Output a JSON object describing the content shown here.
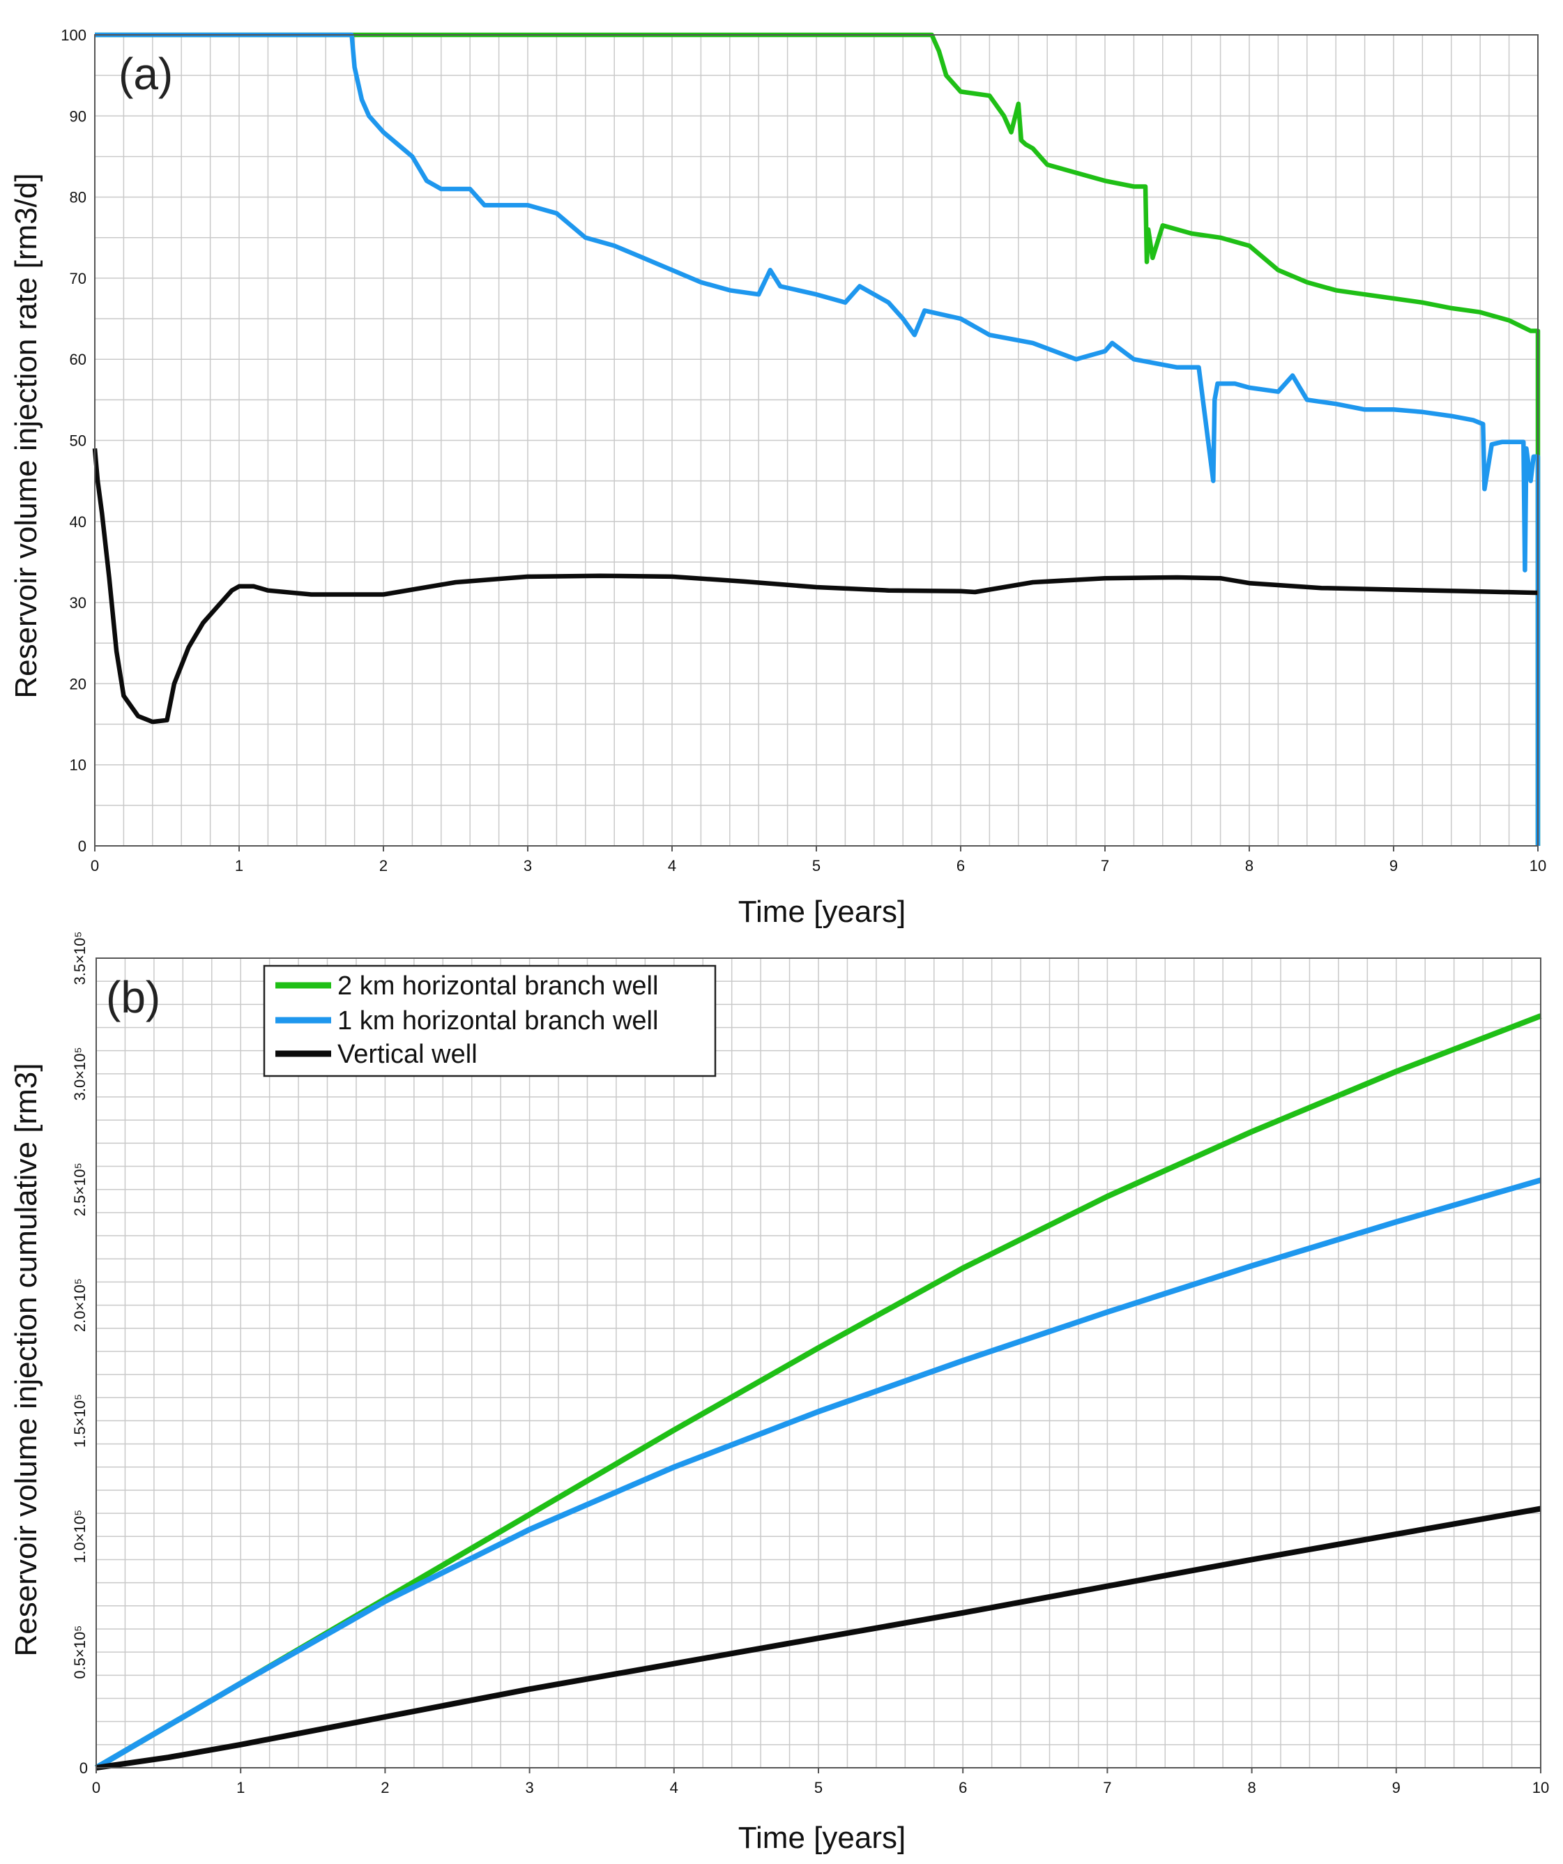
{
  "colors": {
    "green": "#1fbf16",
    "blue": "#1e97ee",
    "black": "#0b0b0b",
    "grid": "#c9c9c9"
  },
  "chart_data": [
    {
      "type": "line",
      "panel_label": "(a)",
      "xlabel": "Time [years]",
      "ylabel": "Reservoir volume injection rate [rm3/d]",
      "xlim": [
        0,
        10
      ],
      "ylim": [
        0,
        100
      ],
      "x_ticks": [
        "0",
        "1",
        "2",
        "3",
        "4",
        "5",
        "6",
        "7",
        "8",
        "9",
        "10"
      ],
      "y_ticks": [
        "0",
        "10",
        "20",
        "30",
        "40",
        "50",
        "60",
        "70",
        "80",
        "90",
        "100"
      ],
      "grid": true,
      "series": [
        {
          "key": "green",
          "x": [
            0,
            5.8,
            5.85,
            5.9,
            6.0,
            6.2,
            6.3,
            6.35,
            6.4,
            6.42,
            6.45,
            6.5,
            6.6,
            6.8,
            7.0,
            7.2,
            7.28,
            7.29,
            7.3,
            7.33,
            7.4,
            7.6,
            7.8,
            8.0,
            8.2,
            8.4,
            8.6,
            8.8,
            9.0,
            9.2,
            9.4,
            9.6,
            9.8,
            9.95,
            10.0,
            10.0
          ],
          "y": [
            100,
            100,
            98,
            95,
            93,
            92.5,
            90,
            88,
            91.5,
            87,
            86.5,
            86,
            84,
            83,
            82,
            81.3,
            81.3,
            72,
            76,
            72.5,
            76.5,
            75.5,
            75,
            74,
            71,
            69.5,
            68.5,
            68,
            67.5,
            67,
            66.3,
            65.8,
            64.8,
            63.5,
            63.5,
            0
          ]
        },
        {
          "key": "blue",
          "x": [
            0,
            1.78,
            1.8,
            1.85,
            1.9,
            2.0,
            2.2,
            2.3,
            2.4,
            2.6,
            2.7,
            2.8,
            2.9,
            3.0,
            3.2,
            3.4,
            3.6,
            3.8,
            4.0,
            4.2,
            4.4,
            4.6,
            4.68,
            4.75,
            5.0,
            5.2,
            5.3,
            5.5,
            5.6,
            5.68,
            5.75,
            6.0,
            6.2,
            6.5,
            6.8,
            7.0,
            7.05,
            7.2,
            7.5,
            7.65,
            7.75,
            7.76,
            7.78,
            7.9,
            8.0,
            8.2,
            8.3,
            8.4,
            8.6,
            8.8,
            9.0,
            9.2,
            9.4,
            9.55,
            9.62,
            9.63,
            9.68,
            9.75,
            9.9,
            9.91,
            9.92,
            9.95,
            9.97,
            10.0,
            10.0
          ],
          "y": [
            100,
            100,
            96,
            92,
            90,
            88,
            85,
            82,
            81,
            81,
            79,
            79,
            79,
            79,
            78,
            75,
            74,
            72.5,
            71,
            69.5,
            68.5,
            68,
            71,
            69,
            68,
            67,
            69,
            67,
            65,
            63,
            66,
            65,
            63,
            62,
            60,
            61,
            62,
            60,
            59,
            59,
            45,
            55,
            57,
            57,
            56.5,
            56,
            58,
            55,
            54.5,
            53.8,
            53.8,
            53.5,
            53,
            52.5,
            52,
            44,
            49.5,
            49.8,
            49.8,
            34,
            49,
            45,
            48,
            48,
            0
          ]
        },
        {
          "key": "black",
          "x": [
            0,
            0.02,
            0.05,
            0.1,
            0.15,
            0.2,
            0.3,
            0.4,
            0.5,
            0.55,
            0.65,
            0.75,
            0.85,
            0.95,
            1.0,
            1.1,
            1.2,
            1.5,
            2.0,
            2.5,
            3.0,
            3.5,
            4.0,
            4.5,
            5.0,
            5.5,
            6.0,
            6.1,
            6.5,
            7.0,
            7.5,
            7.8,
            8.0,
            8.5,
            9.0,
            9.5,
            10.0
          ],
          "y": [
            49,
            45,
            41,
            33,
            24,
            18.5,
            16,
            15.3,
            15.5,
            20,
            24.5,
            27.5,
            29.5,
            31.5,
            32,
            32,
            31.5,
            31,
            31,
            32.5,
            33.2,
            33.3,
            33.2,
            32.6,
            31.9,
            31.5,
            31.4,
            31.3,
            32.5,
            33,
            33.1,
            33,
            32.4,
            31.8,
            31.6,
            31.4,
            31.2
          ]
        }
      ]
    },
    {
      "type": "line",
      "panel_label": "(b)",
      "xlabel": "Time [years]",
      "ylabel": "Reservoir volume injection cumulative [rm3]",
      "xlim": [
        0,
        10
      ],
      "ylim": [
        0,
        350000
      ],
      "x_ticks": [
        "0",
        "1",
        "2",
        "3",
        "4",
        "5",
        "6",
        "7",
        "8",
        "9",
        "10"
      ],
      "y_ticks": [
        "0",
        "0.5×10⁵",
        "1.0×10⁵",
        "1.5×10⁵",
        "2.0×10⁵",
        "2.5×10⁵",
        "3.0×10⁵",
        "3.5×10⁵"
      ],
      "grid": true,
      "legend_position": "top-left",
      "series": [
        {
          "key": "green",
          "name": "2 km horizontal branch well",
          "x": [
            0,
            1,
            2,
            3,
            4,
            5,
            6,
            7,
            8,
            9,
            10
          ],
          "y": [
            0,
            36500,
            73000,
            109500,
            146000,
            181500,
            216000,
            247000,
            275000,
            301000,
            325000
          ]
        },
        {
          "key": "blue",
          "name": "1 km horizontal branch well",
          "x": [
            0,
            1,
            2,
            3,
            4,
            5,
            6,
            7,
            8,
            9,
            10
          ],
          "y": [
            0,
            36500,
            72000,
            103000,
            130000,
            154000,
            176000,
            197000,
            217000,
            236000,
            254000
          ]
        },
        {
          "key": "black",
          "name": "Vertical well",
          "x": [
            0,
            0.5,
            1,
            2,
            3,
            4,
            5,
            6,
            7,
            8,
            9,
            10
          ],
          "y": [
            0,
            4500,
            10000,
            22000,
            34000,
            45000,
            56000,
            67000,
            78500,
            90000,
            101000,
            112000
          ]
        }
      ]
    }
  ]
}
